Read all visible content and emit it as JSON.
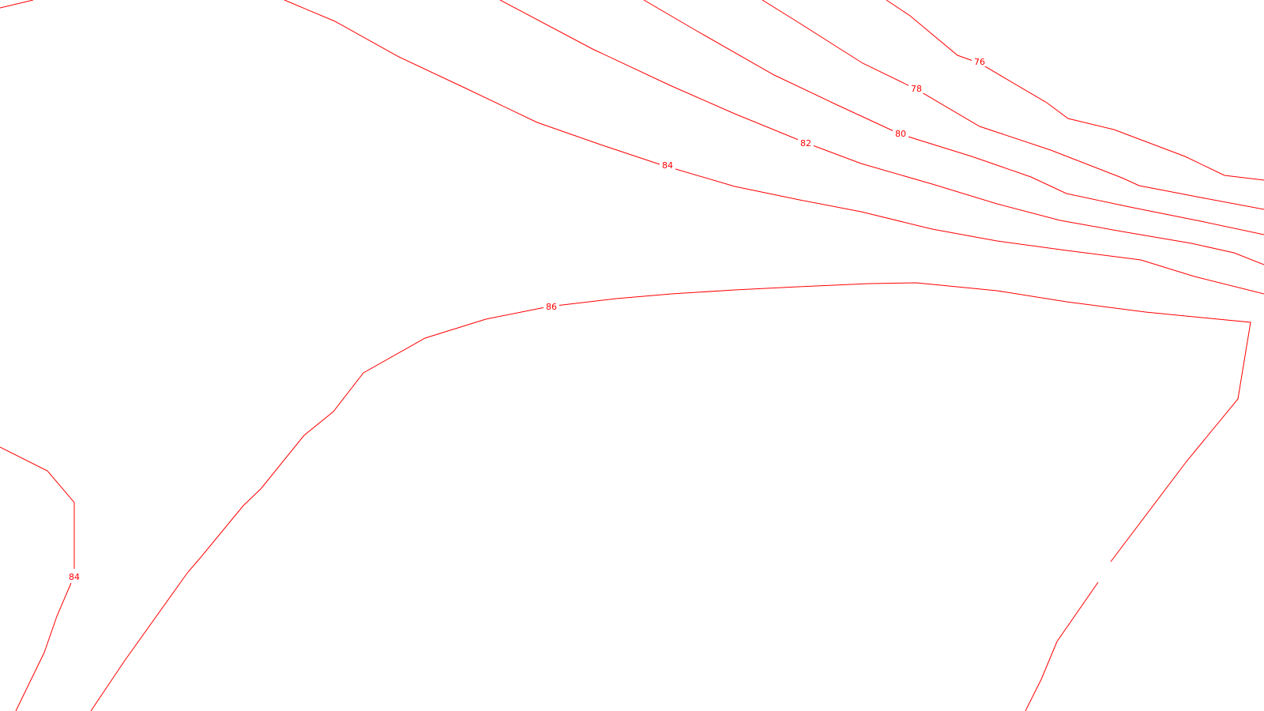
{
  "map": {
    "line_color": "#ff0000",
    "background_color": "#ffffff",
    "labels": {
      "l76": "76",
      "l78": "78",
      "l80": "80",
      "l82": "82",
      "l84_top": "84",
      "l86": "86",
      "l84_left": "84"
    }
  }
}
